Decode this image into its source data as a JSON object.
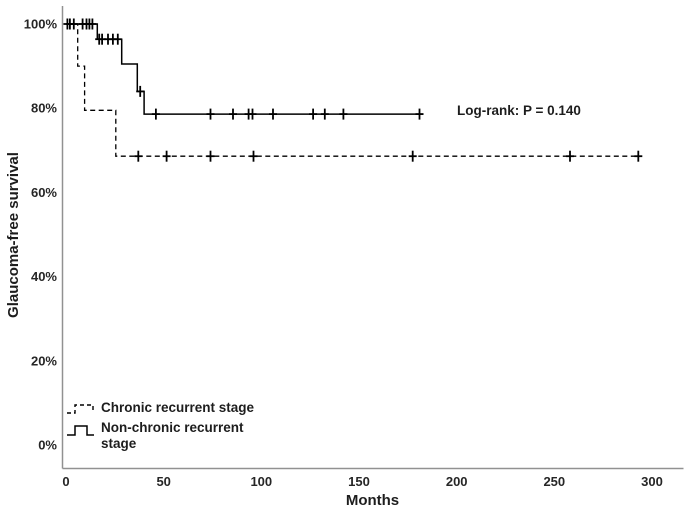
{
  "figure": {
    "background": "#ffffff",
    "text_color": "#1d1d1d",
    "axis_color": "#919191",
    "curve_color": "#000000"
  },
  "chart_data": {
    "type": "line",
    "subtype": "kaplan-meier-step-survival",
    "title": "",
    "xlabel": "Months",
    "ylabel": "Glaucoma-free survival",
    "annotation": "Log-rank: P = 0.140",
    "xlim": [
      0,
      300
    ],
    "ylim": [
      0,
      100
    ],
    "grid": false,
    "xticks": [
      {
        "label": "0",
        "value": 0
      },
      {
        "label": "50",
        "value": 50
      },
      {
        "label": "100",
        "value": 100
      },
      {
        "label": "150",
        "value": 150
      },
      {
        "label": "200",
        "value": 200
      },
      {
        "label": "250",
        "value": 250
      },
      {
        "label": "300",
        "value": 300
      }
    ],
    "yticks": [
      {
        "label": "0%",
        "value": 0
      },
      {
        "label": "20%",
        "value": 20
      },
      {
        "label": "40%",
        "value": 40
      },
      {
        "label": "60%",
        "value": 60
      },
      {
        "label": "80%",
        "value": 80
      },
      {
        "label": "100%",
        "value": 100
      }
    ],
    "legend": {
      "position": "bottom-left-inside",
      "items": [
        {
          "label": "Chronic recurrent stage",
          "style": "dashed"
        },
        {
          "label": "Non-chronic recurrent stage",
          "style": "solid"
        }
      ]
    },
    "series": [
      {
        "name": "Chronic recurrent stage",
        "style": "dashed",
        "color": "#000000",
        "steps": [
          [
            0,
            100
          ],
          [
            6,
            100
          ],
          [
            6,
            90
          ],
          [
            9.5,
            90
          ],
          [
            9.5,
            79.5
          ],
          [
            25.5,
            79.5
          ],
          [
            25.5,
            68.6
          ],
          [
            294,
            68.6
          ]
        ],
        "censor_marks": [
          [
            37,
            68.6
          ],
          [
            51.5,
            68.6
          ],
          [
            74,
            68.6
          ],
          [
            96,
            68.6
          ],
          [
            177.5,
            68.6
          ],
          [
            258,
            68.6
          ],
          [
            293,
            68.6
          ]
        ]
      },
      {
        "name": "Non-chronic recurrent stage",
        "style": "solid",
        "color": "#000000",
        "steps": [
          [
            0,
            100
          ],
          [
            16,
            100
          ],
          [
            16,
            96.4
          ],
          [
            28.5,
            96.4
          ],
          [
            28.5,
            90.5
          ],
          [
            36.5,
            90.5
          ],
          [
            36.5,
            84
          ],
          [
            40,
            84
          ],
          [
            40,
            78.6
          ],
          [
            183,
            78.6
          ]
        ],
        "censor_marks": [
          [
            0.7,
            100
          ],
          [
            2,
            100
          ],
          [
            4,
            100
          ],
          [
            8.5,
            100
          ],
          [
            10.5,
            100
          ],
          [
            12,
            100
          ],
          [
            13.5,
            100
          ],
          [
            17,
            96.4
          ],
          [
            18.5,
            96.4
          ],
          [
            21.5,
            96.4
          ],
          [
            24,
            96.4
          ],
          [
            26.5,
            96.4
          ],
          [
            38,
            84
          ],
          [
            46,
            78.6
          ],
          [
            74,
            78.6
          ],
          [
            85.5,
            78.6
          ],
          [
            93.5,
            78.6
          ],
          [
            95.5,
            78.6
          ],
          [
            106,
            78.6
          ],
          [
            126.5,
            78.6
          ],
          [
            132.5,
            78.6
          ],
          [
            142,
            78.6
          ],
          [
            181,
            78.6
          ]
        ]
      }
    ]
  }
}
